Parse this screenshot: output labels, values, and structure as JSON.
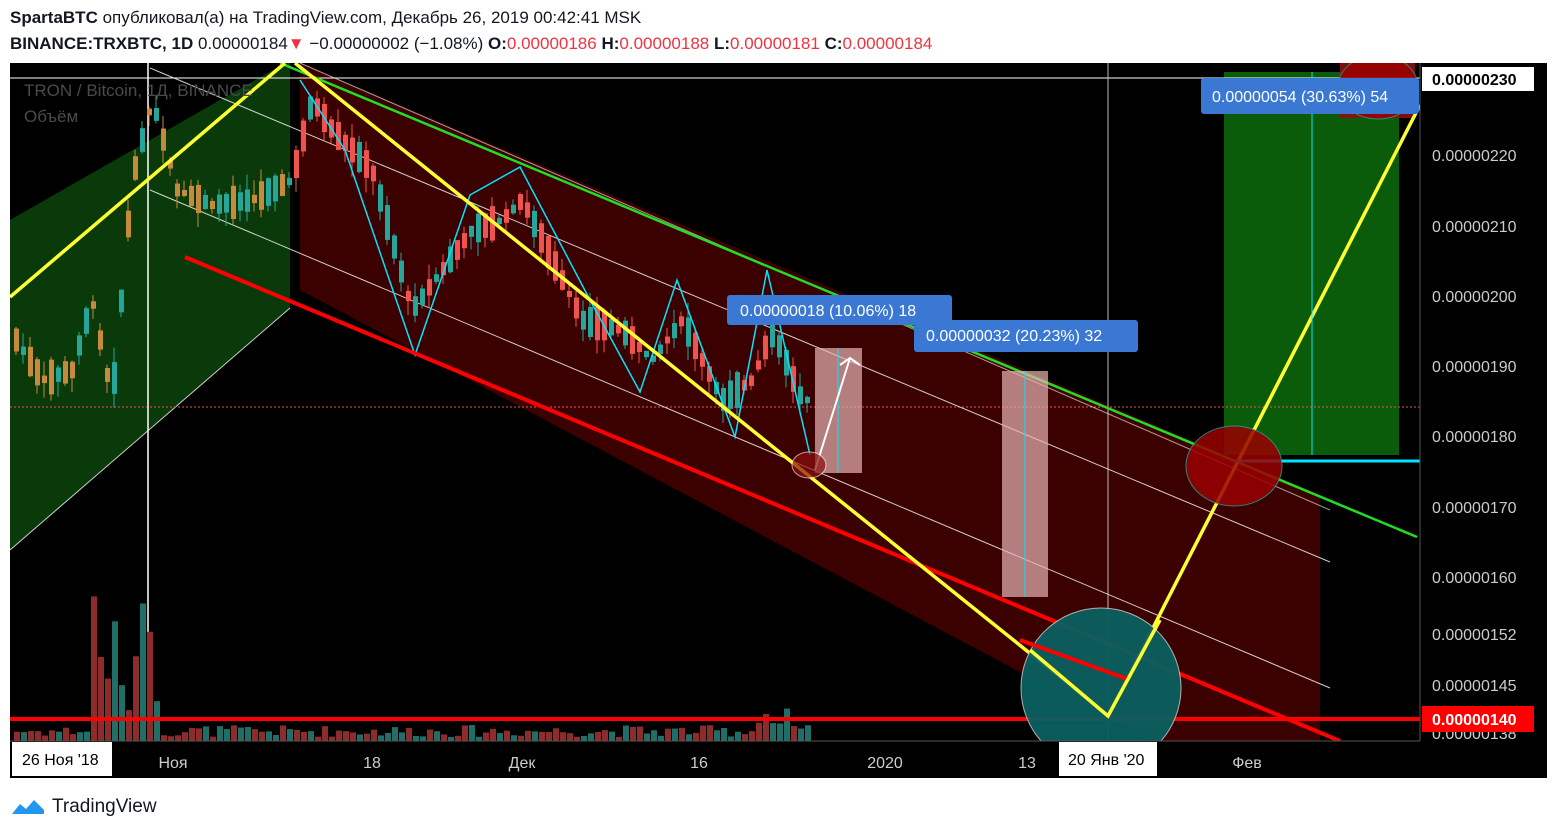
{
  "header": {
    "author": "SpartaBTC",
    "published_text": "опубликовал(а) на TradingView.com, Декабрь 26, 2019 00:42:41 MSK",
    "symbol": "BINANCE:TRXBTC, 1D",
    "last_price": "0.00000184",
    "change_arrow": "▼",
    "change": "−0.00000002 (−1.08%)",
    "o_label": "O:",
    "o_value": "0.00000186",
    "h_label": "H:",
    "h_value": "0.00000188",
    "l_label": "L:",
    "l_value": "0.00000181",
    "c_label": "C:",
    "c_value": "0.00000184"
  },
  "chart_data": {
    "type": "candlestick",
    "legend_title": "TRON / Bitcoin, 1Д, BINANCE",
    "volume_label": "Объём",
    "y_ticks": [
      "0.00000220",
      "0.00000210",
      "0.00000200",
      "0.00000190",
      "0.00000180",
      "0.00000170",
      "0.00000160",
      "0.00000152",
      "0.00000145",
      "0.00000138"
    ],
    "y_price_top": "0.00000230",
    "y_price_current": "0.00000140",
    "x_ticks": [
      "Ноя",
      "18",
      "Дек",
      "16",
      "2020",
      "13",
      "Фев"
    ],
    "x_cursor_left": "26 Ноя '18",
    "x_cursor_right": "20 Янв '20",
    "measures": [
      {
        "text": "0.00000018 (10.06%) 18"
      },
      {
        "text": "0.00000032 (20.23%) 32"
      },
      {
        "text": "0.00000054 (30.63%) 54"
      }
    ],
    "colors": {
      "up": "#26a69a",
      "down": "#ef5350",
      "channel_fill": "#3d0000",
      "yellow": "#ffff33",
      "red_line": "#ff0000",
      "green_line": "#22cc22",
      "cyan": "#00e5ff"
    }
  },
  "footer": {
    "brand": "TradingView",
    "logo_icon": "tradingview-logo-icon"
  }
}
